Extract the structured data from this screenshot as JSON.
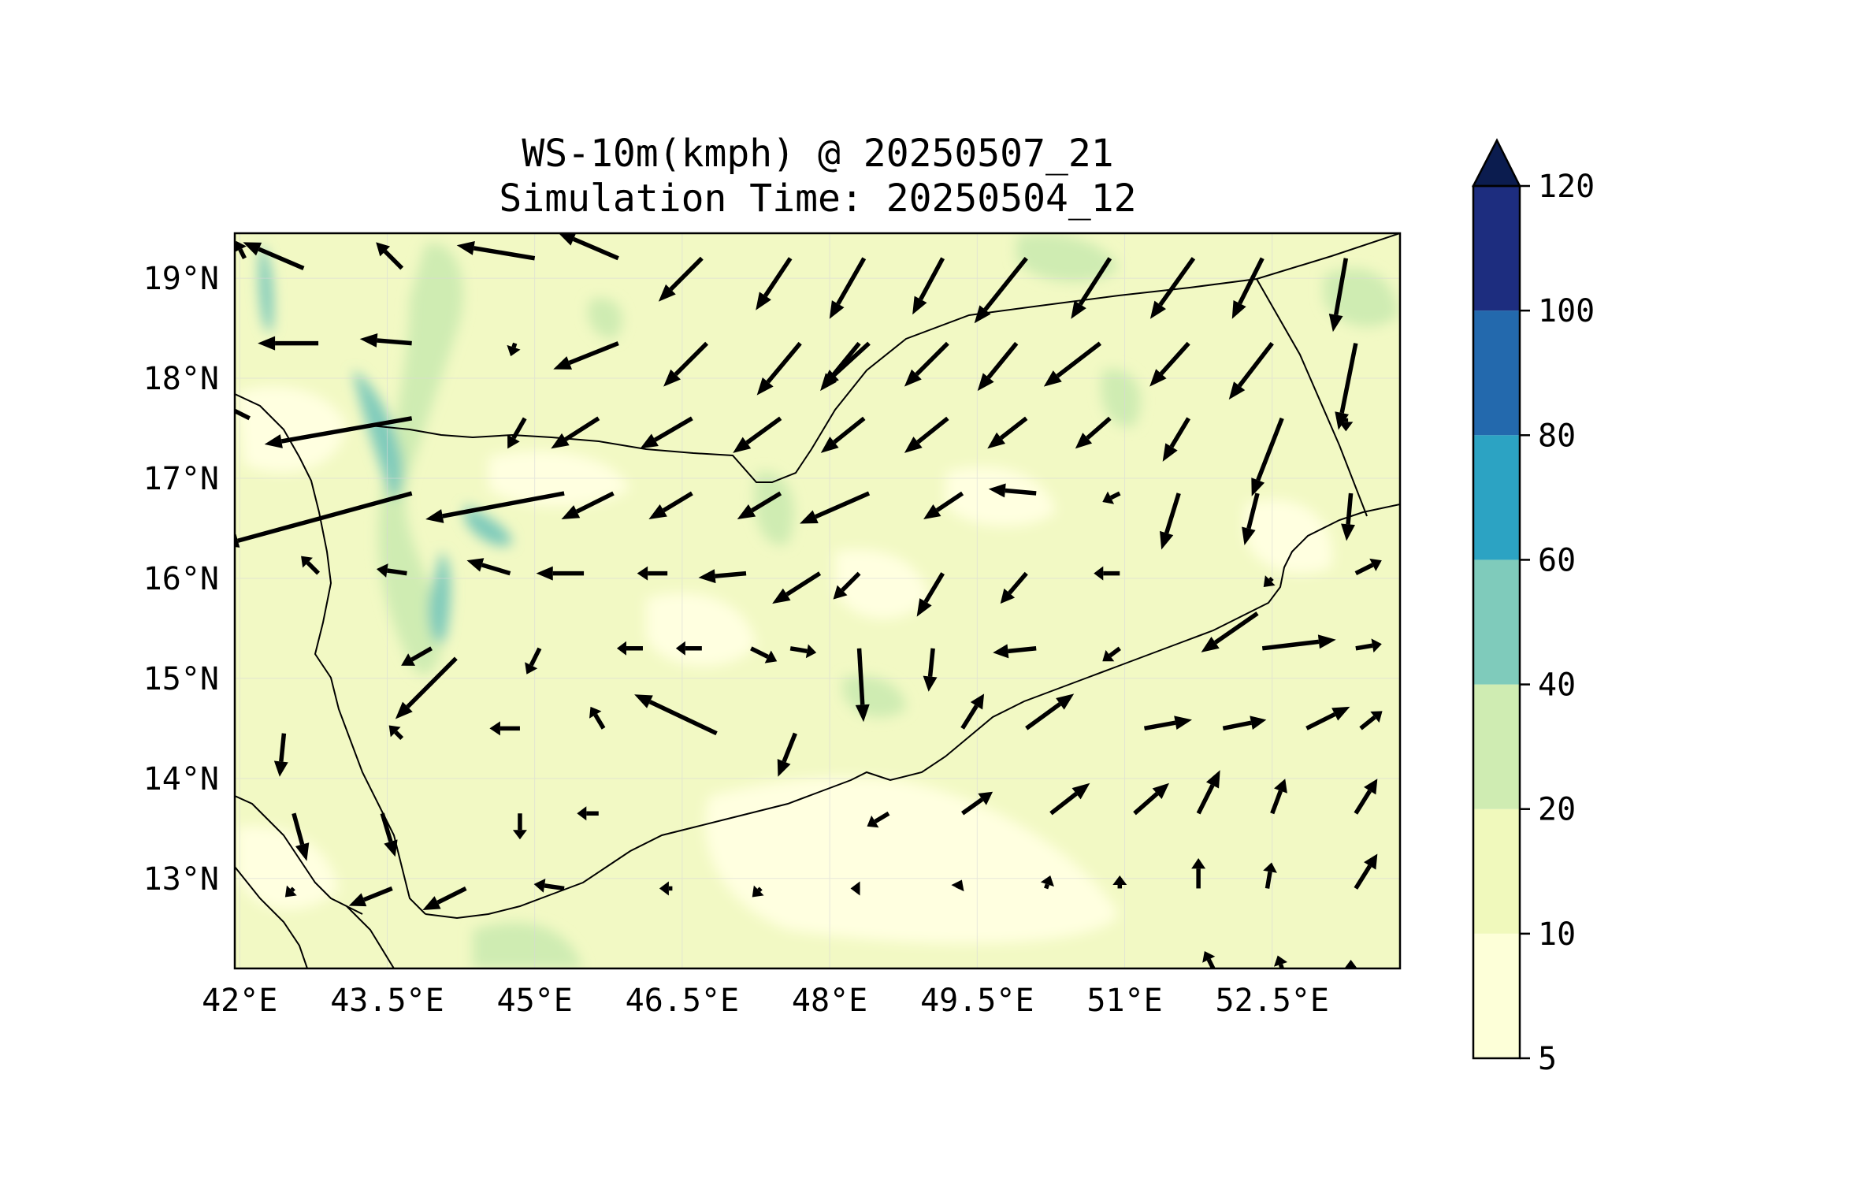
{
  "title": {
    "line1": "WS-10m(kmph) @ 20250507_21",
    "line2": "Simulation Time: 20250504_12"
  },
  "map": {
    "lon_range": [
      41.95,
      53.8
    ],
    "lat_range": [
      12.1,
      19.45
    ],
    "lon_ticks": [
      {
        "value": 42.0,
        "label": "42°E"
      },
      {
        "value": 43.5,
        "label": "43.5°E"
      },
      {
        "value": 45.0,
        "label": "45°E"
      },
      {
        "value": 46.5,
        "label": "46.5°E"
      },
      {
        "value": 48.0,
        "label": "48°E"
      },
      {
        "value": 49.5,
        "label": "49.5°E"
      },
      {
        "value": 51.0,
        "label": "51°E"
      },
      {
        "value": 52.5,
        "label": "52.5°E"
      }
    ],
    "lat_ticks": [
      {
        "value": 19,
        "label": "19°N"
      },
      {
        "value": 18,
        "label": "18°N"
      },
      {
        "value": 17,
        "label": "17°N"
      },
      {
        "value": 16,
        "label": "16°N"
      },
      {
        "value": 15,
        "label": "15°N"
      },
      {
        "value": 14,
        "label": "14°N"
      },
      {
        "value": 13,
        "label": "13°N"
      }
    ],
    "grid": true
  },
  "colorbar": {
    "labels": [
      "5",
      "10",
      "20",
      "40",
      "60",
      "80",
      "100",
      "120"
    ],
    "levels": [
      5,
      10,
      20,
      40,
      60,
      80,
      100,
      120
    ],
    "colors": [
      "#fdffd8",
      "#f0f9bc",
      "#cfecb2",
      "#7fcbbb",
      "#2ca3c3",
      "#2369ad",
      "#1d2d7f",
      "#0b1c4f"
    ],
    "extend": "max"
  },
  "wind_vectors": [
    [
      42.05,
      19.2,
      -0.1,
      0.2
    ],
    [
      42.65,
      19.1,
      -0.7,
      0.3
    ],
    [
      43.65,
      19.1,
      -0.3,
      0.3
    ],
    [
      45.0,
      19.2,
      -0.9,
      0.15
    ],
    [
      45.85,
      19.2,
      -0.7,
      0.3
    ],
    [
      46.7,
      19.2,
      -0.5,
      -0.5
    ],
    [
      47.6,
      19.2,
      -0.4,
      -0.6
    ],
    [
      48.35,
      19.2,
      -0.4,
      -0.7
    ],
    [
      49.15,
      19.2,
      -0.35,
      -0.65
    ],
    [
      50.0,
      19.2,
      -0.6,
      -0.75
    ],
    [
      50.85,
      19.2,
      -0.45,
      -0.7
    ],
    [
      51.7,
      19.2,
      -0.5,
      -0.7
    ],
    [
      52.4,
      19.2,
      -0.35,
      -0.7
    ],
    [
      53.25,
      19.2,
      -0.15,
      -0.85
    ],
    [
      42.8,
      18.35,
      -0.7,
      0
    ],
    [
      43.75,
      18.35,
      -0.6,
      0.05
    ],
    [
      44.8,
      18.35,
      -0.05,
      -0.15
    ],
    [
      45.85,
      18.35,
      -0.75,
      -0.3
    ],
    [
      46.75,
      18.35,
      -0.5,
      -0.5
    ],
    [
      47.7,
      18.35,
      -0.5,
      -0.6
    ],
    [
      48.4,
      18.35,
      -0.55,
      -0.5
    ],
    [
      48.3,
      18.35,
      -0.45,
      -0.55
    ],
    [
      49.2,
      18.35,
      -0.5,
      -0.5
    ],
    [
      49.9,
      18.35,
      -0.45,
      -0.55
    ],
    [
      50.75,
      18.35,
      -0.65,
      -0.5
    ],
    [
      51.65,
      18.35,
      -0.45,
      -0.5
    ],
    [
      52.5,
      18.35,
      -0.5,
      -0.65
    ],
    [
      53.35,
      18.35,
      -0.2,
      -1.0
    ],
    [
      42.1,
      17.6,
      -0.3,
      0.15
    ],
    [
      43.75,
      17.6,
      -1.7,
      -0.3
    ],
    [
      44.9,
      17.6,
      -0.2,
      -0.35
    ],
    [
      45.65,
      17.6,
      -0.55,
      -0.35
    ],
    [
      46.6,
      17.6,
      -0.6,
      -0.35
    ],
    [
      47.5,
      17.6,
      -0.55,
      -0.4
    ],
    [
      48.35,
      17.6,
      -0.5,
      -0.4
    ],
    [
      49.2,
      17.6,
      -0.5,
      -0.4
    ],
    [
      50.0,
      17.6,
      -0.45,
      -0.35
    ],
    [
      50.85,
      17.6,
      -0.4,
      -0.35
    ],
    [
      51.65,
      17.6,
      -0.3,
      -0.5
    ],
    [
      52.6,
      17.6,
      -0.35,
      -0.9
    ],
    [
      53.25,
      17.6,
      0,
      -0.15
    ],
    [
      43.75,
      16.85,
      -2.2,
      -0.6
    ],
    [
      45.3,
      16.85,
      -1.6,
      -0.3
    ],
    [
      45.8,
      16.85,
      -0.6,
      -0.3
    ],
    [
      46.6,
      16.85,
      -0.5,
      -0.3
    ],
    [
      47.5,
      16.85,
      -0.5,
      -0.3
    ],
    [
      48.4,
      16.85,
      -0.8,
      -0.35
    ],
    [
      49.35,
      16.85,
      -0.45,
      -0.3
    ],
    [
      50.1,
      16.85,
      -0.55,
      0.05
    ],
    [
      50.95,
      16.85,
      -0.2,
      -0.1
    ],
    [
      51.55,
      16.85,
      -0.2,
      -0.65
    ],
    [
      52.35,
      16.85,
      -0.15,
      -0.6
    ],
    [
      53.3,
      16.85,
      -0.05,
      -0.55
    ],
    [
      42.8,
      16.05,
      -0.2,
      0.2
    ],
    [
      43.7,
      16.05,
      -0.35,
      0.05
    ],
    [
      44.75,
      16.05,
      -0.5,
      0.15
    ],
    [
      45.5,
      16.05,
      -0.55,
      0
    ],
    [
      46.35,
      16.05,
      -0.35,
      0
    ],
    [
      47.15,
      16.05,
      -0.55,
      -0.05
    ],
    [
      47.9,
      16.05,
      -0.55,
      -0.35
    ],
    [
      48.3,
      16.05,
      -0.3,
      -0.3
    ],
    [
      49.15,
      16.05,
      -0.3,
      -0.5
    ],
    [
      50.0,
      16.05,
      -0.3,
      -0.35
    ],
    [
      50.95,
      16.05,
      -0.3,
      0
    ],
    [
      52.5,
      16.0,
      -0.1,
      -0.1
    ],
    [
      53.35,
      16.05,
      0.3,
      0.15
    ],
    [
      43.95,
      15.3,
      -0.35,
      -0.2
    ],
    [
      45.05,
      15.3,
      -0.15,
      -0.3
    ],
    [
      46.1,
      15.3,
      -0.3,
      0
    ],
    [
      46.7,
      15.3,
      -0.3,
      0
    ],
    [
      47.2,
      15.3,
      0.3,
      -0.15
    ],
    [
      47.6,
      15.3,
      0.3,
      -0.05
    ],
    [
      48.3,
      15.3,
      0.05,
      -0.85
    ],
    [
      49.05,
      15.3,
      -0.05,
      -0.5
    ],
    [
      50.1,
      15.3,
      -0.5,
      -0.05
    ],
    [
      50.95,
      15.3,
      -0.2,
      -0.15
    ],
    [
      52.35,
      15.65,
      -0.65,
      -0.45
    ],
    [
      52.4,
      15.3,
      0.85,
      0.1
    ],
    [
      53.35,
      15.3,
      0.3,
      0.05
    ],
    [
      44.2,
      15.2,
      -0.7,
      -0.7
    ],
    [
      44.85,
      14.5,
      -0.35,
      0
    ],
    [
      43.65,
      14.4,
      -0.15,
      0.15
    ],
    [
      45.7,
      14.5,
      -0.15,
      0.25
    ],
    [
      46.85,
      14.45,
      -0.95,
      0.45
    ],
    [
      47.65,
      14.45,
      -0.2,
      -0.5
    ],
    [
      49.35,
      14.5,
      0.25,
      0.4
    ],
    [
      50.0,
      14.5,
      0.55,
      0.4
    ],
    [
      51.2,
      14.5,
      0.55,
      0.1
    ],
    [
      52.0,
      14.5,
      0.5,
      0.1
    ],
    [
      52.85,
      14.5,
      0.5,
      0.25
    ],
    [
      53.4,
      14.5,
      0.25,
      0.2
    ],
    [
      42.45,
      14.45,
      -0.05,
      -0.5
    ],
    [
      42.55,
      13.65,
      0.15,
      -0.55
    ],
    [
      43.45,
      13.65,
      0.15,
      -0.5
    ],
    [
      44.85,
      13.65,
      0,
      -0.3
    ],
    [
      45.65,
      13.65,
      -0.25,
      0
    ],
    [
      48.6,
      13.65,
      -0.25,
      -0.15
    ],
    [
      49.35,
      13.65,
      0.35,
      0.25
    ],
    [
      50.25,
      13.65,
      0.45,
      0.35
    ],
    [
      51.1,
      13.65,
      0.4,
      0.35
    ],
    [
      51.75,
      13.65,
      0.25,
      0.5
    ],
    [
      52.5,
      13.65,
      0.15,
      0.4
    ],
    [
      53.35,
      13.65,
      0.25,
      0.4
    ],
    [
      42.55,
      12.9,
      -0.1,
      -0.1
    ],
    [
      43.55,
      12.9,
      -0.5,
      -0.2
    ],
    [
      44.3,
      12.9,
      -0.5,
      -0.25
    ],
    [
      45.3,
      12.9,
      -0.35,
      0.05
    ],
    [
      46.4,
      12.9,
      -0.15,
      0
    ],
    [
      47.3,
      12.9,
      -0.1,
      -0.1
    ],
    [
      48.3,
      12.9,
      -0.1,
      0
    ],
    [
      49.3,
      12.9,
      0.05,
      0.1
    ],
    [
      50.2,
      12.9,
      0.05,
      0.15
    ],
    [
      50.95,
      12.9,
      0,
      0.15
    ],
    [
      51.75,
      12.9,
      0,
      0.35
    ],
    [
      52.45,
      12.9,
      0.05,
      0.3
    ],
    [
      53.35,
      12.9,
      0.25,
      0.4
    ],
    [
      52.6,
      12.1,
      -0.05,
      0.15
    ],
    [
      51.9,
      12.1,
      -0.1,
      0.2
    ],
    [
      53.3,
      12.1,
      0,
      0.1
    ]
  ]
}
